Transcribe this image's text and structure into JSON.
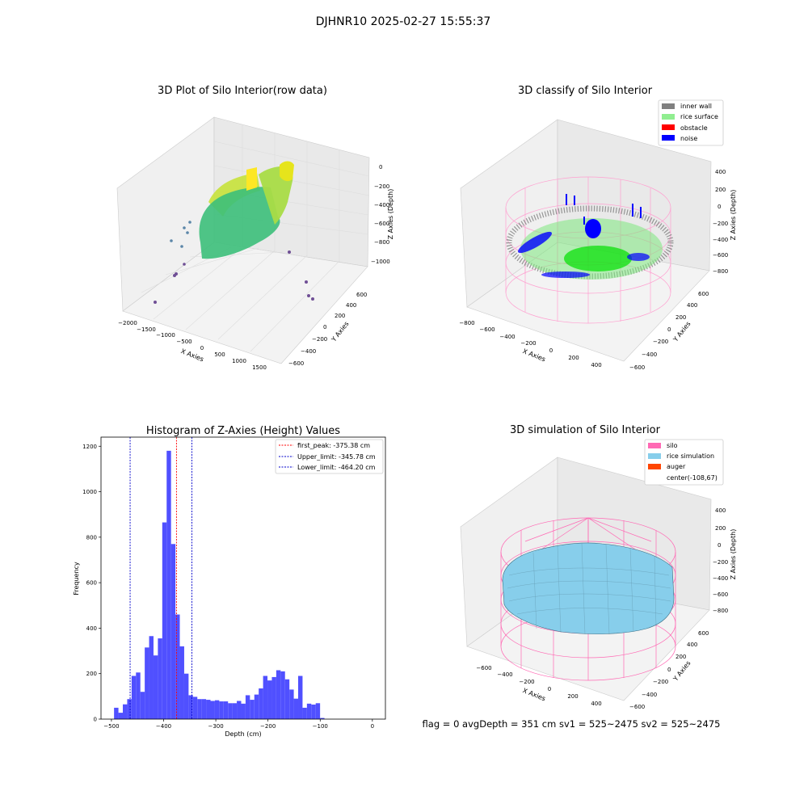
{
  "figure": {
    "suptitle": "DJHNR10 2025-02-27 15:55:37",
    "footer": "flag = 0     avgDepth = 351 cm  sv1 = 525~2475  sv2 = 525~2475"
  },
  "colors": {
    "hist_bar": "#5050ff",
    "first_peak": "#ff0000",
    "limit": "#0000cc",
    "inner_wall": "#808080",
    "rice_surface": "#90ee90",
    "obstacle": "#ff0000",
    "noise": "#0000ff",
    "silo": "#ff69b4",
    "rice_simulation": "#87ceeb",
    "auger": "#ff4500"
  },
  "chart_data": [
    {
      "type": "scatter",
      "dimensions": 3,
      "title": "3D Plot of Silo Interior(row data)",
      "xlabel": "X Axies",
      "ylabel": "Y Axies",
      "zlabel": "Z Axies (Depth)",
      "x_ticks": [
        "−2000",
        "−1500",
        "−1000",
        "−500",
        "0",
        "500",
        "1000",
        "1500"
      ],
      "y_ticks": [
        "−600",
        "−400",
        "−200",
        "0",
        "200",
        "400",
        "600"
      ],
      "z_ticks": [
        "0",
        "−200",
        "−400",
        "−600",
        "−800",
        "−1000"
      ]
    },
    {
      "type": "scatter",
      "dimensions": 3,
      "title": "3D classify of Silo Interior",
      "xlabel": "X Axies",
      "ylabel": "Y Axies",
      "zlabel": "Z Axies (Depth)",
      "x_ticks": [
        "−800",
        "−600",
        "−400",
        "−200",
        "0",
        "200",
        "400"
      ],
      "y_ticks": [
        "−600",
        "−400",
        "−200",
        "0",
        "200",
        "400",
        "600"
      ],
      "z_ticks": [
        "400",
        "200",
        "0",
        "−200",
        "−400",
        "−600",
        "−800"
      ],
      "legend": [
        "inner wall",
        "rice surface",
        "obstacle",
        "noise"
      ],
      "legend_loc": "upper right"
    },
    {
      "type": "bar",
      "title": "Histogram of Z-Axies (Height) Values",
      "xlabel": "Depth (cm)",
      "ylabel": "Frequency",
      "xlim": [
        -520,
        25
      ],
      "ylim": [
        0,
        1240
      ],
      "x_ticks": [
        -500,
        -400,
        -300,
        -200,
        -100,
        0
      ],
      "x_tick_labels": [
        "−500",
        "−400",
        "−300",
        "−200",
        "−100",
        "0"
      ],
      "y_ticks": [
        0,
        200,
        400,
        600,
        800,
        1000,
        1200
      ],
      "bin_start": -495,
      "bin_width": 8.4,
      "values": [
        50,
        28,
        65,
        88,
        190,
        205,
        120,
        315,
        365,
        280,
        355,
        865,
        1180,
        770,
        460,
        320,
        200,
        105,
        98,
        88,
        88,
        85,
        80,
        83,
        78,
        78,
        70,
        70,
        80,
        68,
        105,
        85,
        108,
        135,
        190,
        170,
        185,
        215,
        210,
        175,
        130,
        90,
        190,
        50,
        68,
        64,
        70,
        5
      ],
      "lines": [
        {
          "label": "first_peak: -375.38 cm",
          "x": -375.38,
          "color": "#ff0000"
        },
        {
          "label": "Upper_limit: -345.78 cm",
          "x": -345.78,
          "color": "#0000cc"
        },
        {
          "label": "Lower_limit: -464.20 cm",
          "x": -464.2,
          "color": "#0000cc"
        }
      ],
      "legend_loc": "upper right"
    },
    {
      "type": "surface",
      "dimensions": 3,
      "title": "3D simulation of Silo Interior",
      "xlabel": "X Axies",
      "ylabel": "Y Axies",
      "zlabel": "Z Axies (Depth)",
      "x_ticks": [
        "−600",
        "−400",
        "−200",
        "0",
        "200",
        "400"
      ],
      "y_ticks": [
        "−600",
        "−400",
        "−200",
        "0",
        "200",
        "400",
        "600"
      ],
      "z_ticks": [
        "400",
        "200",
        "0",
        "−200",
        "−400",
        "−600",
        "−800"
      ],
      "legend": [
        "silo",
        "rice simulation",
        "auger",
        "center(-108,67)"
      ],
      "legend_loc": "upper right"
    }
  ]
}
